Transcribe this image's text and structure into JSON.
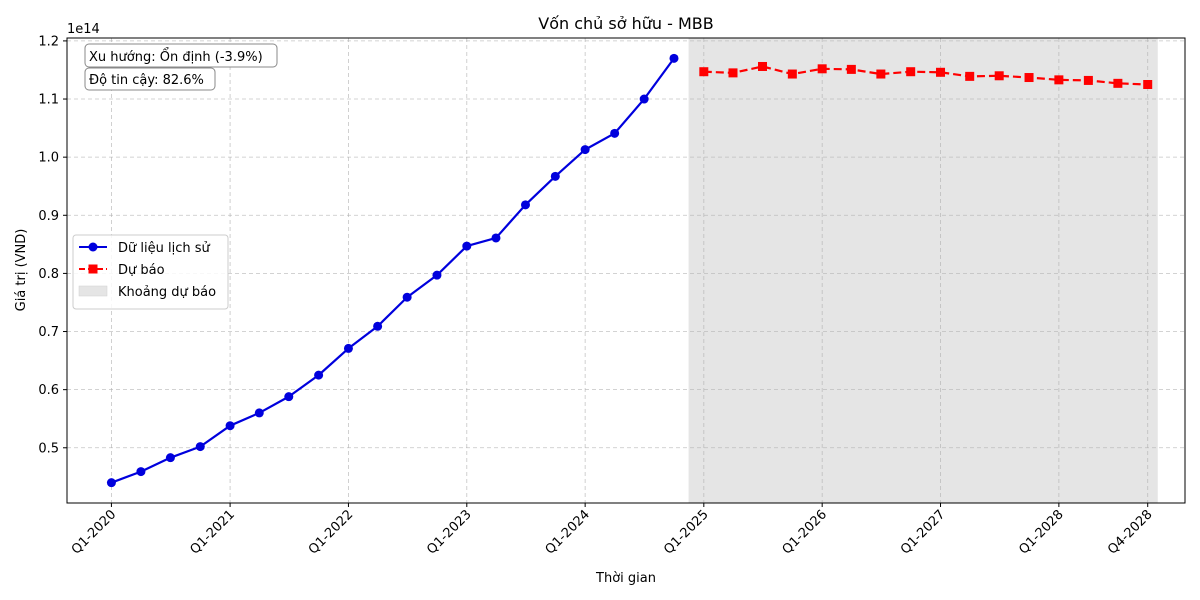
{
  "chart_data": {
    "type": "line",
    "title": "Vốn chủ sở hữu - MBB",
    "xlabel": "Thời gian",
    "ylabel": "Giá trị (VND)",
    "y_offset_label": "1e14",
    "ylim": [
      0.405,
      1.205
    ],
    "yticks": [
      0.5,
      0.6,
      0.7,
      0.8,
      0.9,
      1.0,
      1.1,
      1.2
    ],
    "ytick_labels": [
      "0.5",
      "0.6",
      "0.7",
      "0.8",
      "0.9",
      "1.0",
      "1.1",
      "1.2"
    ],
    "xlim": [
      "2019-08-17",
      "2029-01-24"
    ],
    "xticks": [
      "2020-01-01",
      "2021-01-01",
      "2022-01-01",
      "2023-01-01",
      "2024-01-01",
      "2025-01-01",
      "2026-01-01",
      "2027-01-01",
      "2028-01-01",
      "2028-10-01"
    ],
    "xtick_labels": [
      "Q1-2020",
      "Q1-2021",
      "Q1-2022",
      "Q1-2023",
      "Q1-2024",
      "Q1-2025",
      "Q1-2026",
      "Q1-2027",
      "Q1-2028",
      "Q4-2028"
    ],
    "grid": true,
    "legend_position": "center-left",
    "annotations": [
      {
        "text": "Xu hướng: Ổn định (-3.9%)"
      },
      {
        "text": "Độ tin cậy: 82.6%"
      }
    ],
    "forecast_band": {
      "name": "Khoảng dự báo",
      "x_start": "2024-11-15",
      "x_end": "2028-11-01",
      "color": "#e5e5e5"
    },
    "series": [
      {
        "name": "Dữ liệu lịch sử",
        "color": "#0000dd",
        "marker": "circle",
        "linestyle": "solid",
        "x": [
          "2020-01-01",
          "2020-04-01",
          "2020-07-01",
          "2020-10-01",
          "2021-01-01",
          "2021-04-01",
          "2021-07-01",
          "2021-10-01",
          "2022-01-01",
          "2022-04-01",
          "2022-07-01",
          "2022-10-01",
          "2023-01-01",
          "2023-04-01",
          "2023-07-01",
          "2023-10-01",
          "2024-01-01",
          "2024-04-01",
          "2024-07-01",
          "2024-10-01"
        ],
        "values": [
          0.44,
          0.459,
          0.483,
          0.502,
          0.538,
          0.56,
          0.588,
          0.625,
          0.671,
          0.709,
          0.759,
          0.797,
          0.847,
          0.861,
          0.918,
          0.967,
          1.013,
          1.041,
          1.1,
          1.17
        ]
      },
      {
        "name": "Dự báo",
        "color": "#ff0000",
        "marker": "square",
        "linestyle": "dashed",
        "x": [
          "2025-01-01",
          "2025-04-01",
          "2025-07-01",
          "2025-10-01",
          "2026-01-01",
          "2026-04-01",
          "2026-07-01",
          "2026-10-01",
          "2027-01-01",
          "2027-04-01",
          "2027-07-01",
          "2027-10-01",
          "2028-01-01",
          "2028-04-01",
          "2028-07-01",
          "2028-10-01"
        ],
        "values": [
          1.147,
          1.145,
          1.156,
          1.143,
          1.152,
          1.151,
          1.143,
          1.147,
          1.146,
          1.139,
          1.14,
          1.137,
          1.133,
          1.132,
          1.127,
          1.125
        ]
      }
    ]
  }
}
